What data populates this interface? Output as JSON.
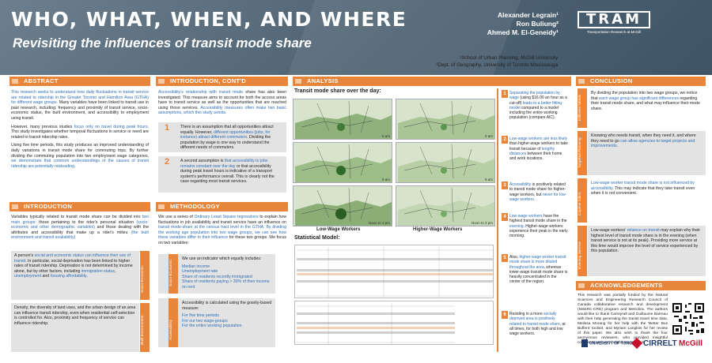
{
  "header": {
    "title": "WHO, WHAT, WHEN, AND WHERE",
    "subtitle": "Revisiting the influences of transit mode share",
    "authors": [
      "Alexander Legrain¹",
      "Ron Buliung²",
      "Ahmed M. El-Geneidy¹"
    ],
    "logo_text": "TRAM",
    "logo_subtitle": "Transportation Research at McGill"
  },
  "affiliations": [
    "¹School of Urban Planning, McGill University",
    "²Dept. of Geography, University of Toronto Mississauga"
  ],
  "abstract": {
    "title": "ABSTRACT",
    "p1_a": "This research seeks to understand how daily fluctuations in transit service are related to ridership in the Greater Toronto and Hamilton Area (GTHA) for different wage groups.",
    "p1_b": " Many variables have been linked to transit use in past research, including: frequency and proximity of transit service, socio-economic status, the built environment, and accessibility to employment using transit.",
    "p2_a": "However, many previous studies ",
    "p2_b": "focus only on travel during peak hours",
    "p2_c": ". This study investigates whether temporal fluctuations in service or need are related to transit ridership rates.",
    "p3_a": "Using five time periods, this study produces an improved understanding of daily variations in transit mode share for commuting trips. By further dividing the commuting population into two employment wage categories, ",
    "p3_b": "we demonstrate that common understandings of the causes of transit ridership are potentially misleading."
  },
  "introduction": {
    "title": "INTRODUCTION",
    "p1_a": "Variables typically related to transit mode share can be divided into ",
    "p1_b": "two main groups",
    "p1_c": ": those pertaining to the rider's personal situation ",
    "p1_d": "(socio-economic and other demographic variables)",
    "p1_e": " and those dealing with the attributes and accessibility that make up a rider's milieu ",
    "p1_f": "(the built environment and transit availability).",
    "box1_a": "A person's ",
    "box1_b": "social and economic status can influence their use of transit",
    "box1_c": ". In particular, social deprivation has been linked to higher rates of transit ridership. Deprivation is not determined by income alone, but by other factors, including ",
    "box1_d": "immigration status",
    "box1_e": ", ",
    "box1_f": "unemployment",
    "box1_g": " and ",
    "box1_h": "housing affordability",
    "box1_i": ".",
    "tab1": "Socio-Economic",
    "box2": "Density, the diversity of land uses, and the urban design of an area can influence transit ridership, even when residential self-selection is controlled for. Also, proximity and frequency of service can influence ridership.",
    "tab2": "Built Environment"
  },
  "intro_contd": {
    "title": "INTRODUCTION, CONT'D",
    "p1_a": "Accessibility's relationship with transit mode",
    "p1_b": " share has also been investigated. This measure aims to account for both the access areas have to transit service as well as the opportunities that are reached using those services. ",
    "p1_c": "Accessibility measures often make two basic assumptions, which this study avoids.",
    "box1_num": "1",
    "box1_a": "There is an assumption that all opportunities attract equally. However, ",
    "box1_b": "different opportunities (jobs, for instance) attract different commuters",
    "box1_c": ". Dividing the population by wage is one way to understand the different needs of commuters.",
    "box2_num": "2",
    "box2_a": "A second assumption is ",
    "box2_b": "that accessibility to jobs remains constant over the day",
    "box2_c": " or that accessibility during peak travel hours is indicative of a transport system's performance overall. This is clearly not the case regarding most transit services."
  },
  "methodology": {
    "title": "METHODOLOGY",
    "p1_a": "We use a series of ",
    "p1_b": "Ordinary Least Square regressions",
    "p1_c": " to explain how fluctuations in job availability and transit service have an influence on ",
    "p1_d": "transit mode-share at the census tract level in the GTHA. By dividing the working age population into two wage groups, we can see how these variables differ in their influence",
    "p1_e": " for these two groups. We focus on two variables:",
    "box1_intro": "We use an indicator which equally includes:",
    "box1_items": [
      "Median income",
      "Unemployment rate",
      "Share of residents recently immigrated",
      "Share of residents paying > 30% of their income on rent"
    ],
    "tab1": "Socio-Economic",
    "box2_intro": "Accessibility is calculated using the gravity-based measure:",
    "box2_items": [
      "For five time periods",
      "For our two wage-groups",
      "For the entire working population"
    ],
    "tab2": "Accessibility"
  },
  "analysis": {
    "title": "ANALYSIS",
    "maps_title": "Transit mode share over the day:",
    "map_labels": [
      "6 am",
      "6 am",
      "9 am",
      "9 am",
      "Noon to 3 pm",
      "Noon to 3 pm"
    ],
    "map_captions": [
      "Low-Wage Workers",
      "Higher-Wage Workers"
    ],
    "stats_title": "Statistical Model:",
    "notes": [
      {
        "num": "1",
        "a": "Separating the population by wage",
        "b": " (using $16.00 an hour as a cut-off) ",
        "c": "leads to a better fitting model",
        "d": " compared to a model including the entire working population (compare AIC)."
      },
      {
        "num": "2",
        "a": "Low-wage workers are less likely",
        "b": " than higher-wage workers to take transit because of ",
        "c": "lengthy distances",
        "d": " between their home and work locations."
      },
      {
        "num": "3",
        "a": "Accessibility",
        "b": " is positively related to transit mode share for higher-wage workers, but ",
        "c": "never for low-wage workers",
        "d": "."
      },
      {
        "num": "4",
        "a": "Low-wage workers",
        "b": " have the highest transit mode share in the ",
        "c": "evening",
        "d": ". Higher-wage workers experience their peak in the early morning."
      },
      {
        "num": "5",
        "a": "Also, ",
        "b": "higher-wage worker transit mode share is more diluted throughout the area",
        "c": ", whereas lower-wage transit mode share is heavily concentrated in the center of the region.",
        "d": ""
      },
      {
        "num": "6",
        "a": "Residing in a more ",
        "b": "socially deprived area is positively related to transit mode share",
        "c": ", at all times, for both high and low wage workers.",
        "d": ""
      }
    ]
  },
  "conclusion": {
    "title": "CONCLUSION",
    "items": [
      {
        "tab": "Different Needs",
        "a": "By dividing the population into two wage groups, we notice that ",
        "b": "each wage group has significant differences",
        "c": " regarding their transit mode share, and what may influence their mode share."
      },
      {
        "tab": "Targeted Planning",
        "a": "Knowing who needs transit, when they need it, and where they need to go ",
        "b": "can allow agencies to target projects and improvements",
        "c": "."
      },
      {
        "tab": "Captive riders",
        "a": "",
        "b": "Low-wage worker transit mode share is not influenced by accessibility",
        "c": ". This may indicate that they take transit even when it is not convenient."
      },
      {
        "tab": "Evening Service",
        "a": "Low-wage workers' ",
        "b": "reliance on transit",
        "c": " may explain why their highest level of transit mode share is in the evening (when transit service is not at its peak). Providing more service at this time would improve the level of service experienced by this population."
      }
    ]
  },
  "acknowledgements": {
    "title": "ACKNOWLEDGEMENTS",
    "text": "This research was partially funded by the Natural Sciences and Engineering Research Council of Canada collaborative research and development (NSERC-CRD) program and Metrolinx. The authors would like to thank Carreyrall and Guillaume Barreau with their help generating the transit travel time data, Melissa Morang for her help with the 'Better Bus Buffers' toolset, and Myriam Langlois for her review of this paper. We also wish to thank the four anonymous reviewers, who provided insightful comments and very helpful suggestions."
  },
  "logos": [
    "UNIVERSITY OF TORONTO",
    "CIRRELT",
    "McGill"
  ],
  "colors": {
    "accent": "#e7853a",
    "header": "#4e6272",
    "highlight": "#2e6eb5"
  }
}
